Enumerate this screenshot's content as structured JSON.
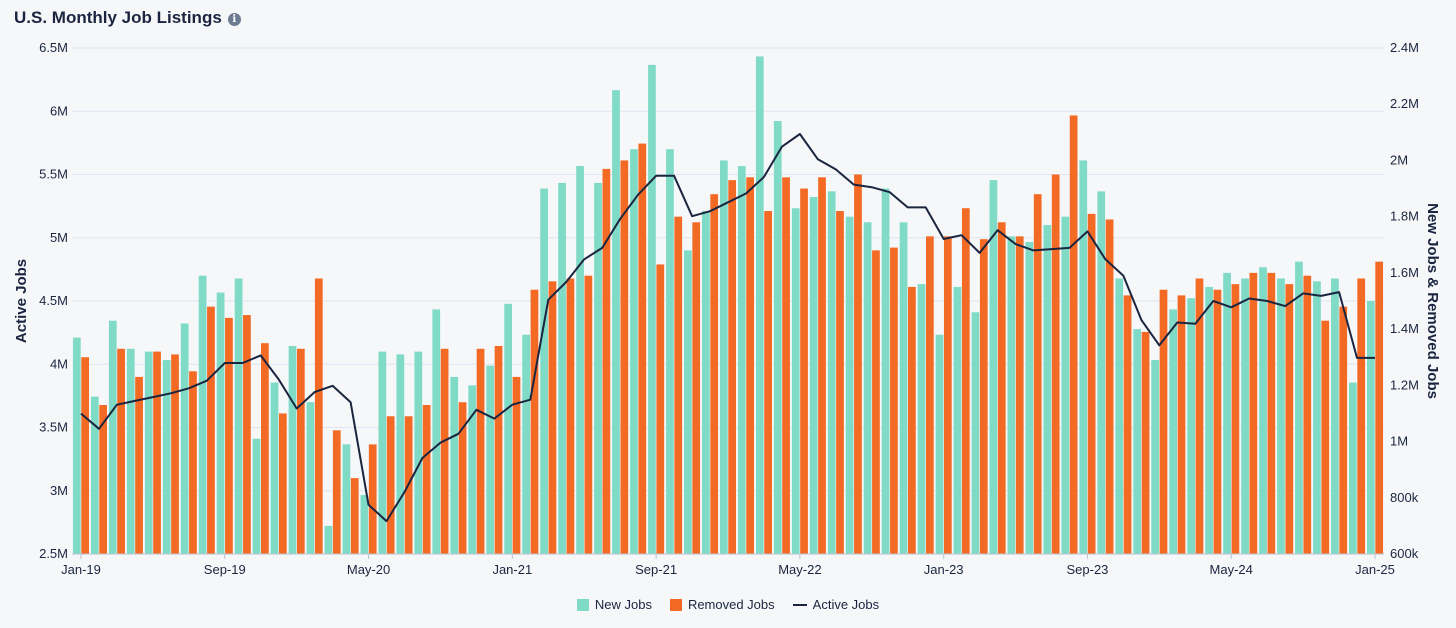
{
  "title": "U.S. Monthly Job Listings",
  "info_icon": "info-icon",
  "colors": {
    "new_jobs": "#7fdac6",
    "removed_jobs": "#f36a24",
    "active_jobs": "#1b2540",
    "grid": "#dce6f2",
    "text": "#1b2540"
  },
  "chart_data": {
    "type": "bar",
    "title": "U.S. Monthly Job Listings",
    "xlabel": "",
    "ylabel_left": "Active Jobs",
    "ylabel_right": "New Jobs & Removed Jobs",
    "ylim_left": [
      2500000,
      6500000
    ],
    "ylim_right": [
      600000,
      2400000
    ],
    "left_ticks": [
      "2.5M",
      "3M",
      "3.5M",
      "4M",
      "4.5M",
      "5M",
      "5.5M",
      "6M",
      "6.5M"
    ],
    "right_ticks": [
      "600k",
      "800k",
      "1M",
      "1.2M",
      "1.4M",
      "1.6M",
      "1.8M",
      "2M",
      "2.2M",
      "2.4M"
    ],
    "x_ticks": [
      "Jan-19",
      "Sep-19",
      "May-20",
      "Jan-21",
      "Sep-21",
      "May-22",
      "Jan-23",
      "Sep-23",
      "May-24",
      "Jan-25"
    ],
    "x_tick_index": [
      0,
      8,
      16,
      24,
      32,
      40,
      48,
      56,
      64,
      72
    ],
    "grid": true,
    "legend_position": "bottom",
    "categories": [
      "Jan-19",
      "Feb-19",
      "Mar-19",
      "Apr-19",
      "May-19",
      "Jun-19",
      "Jul-19",
      "Aug-19",
      "Sep-19",
      "Oct-19",
      "Nov-19",
      "Dec-19",
      "Jan-20",
      "Feb-20",
      "Mar-20",
      "Apr-20",
      "May-20",
      "Jun-20",
      "Jul-20",
      "Aug-20",
      "Sep-20",
      "Oct-20",
      "Nov-20",
      "Dec-20",
      "Jan-21",
      "Feb-21",
      "Mar-21",
      "Apr-21",
      "May-21",
      "Jun-21",
      "Jul-21",
      "Aug-21",
      "Sep-21",
      "Oct-21",
      "Nov-21",
      "Dec-21",
      "Jan-22",
      "Feb-22",
      "Mar-22",
      "Apr-22",
      "May-22",
      "Jun-22",
      "Jul-22",
      "Aug-22",
      "Sep-22",
      "Oct-22",
      "Nov-22",
      "Dec-22",
      "Jan-23",
      "Feb-23",
      "Mar-23",
      "Apr-23",
      "May-23",
      "Jun-23",
      "Jul-23",
      "Aug-23",
      "Sep-23",
      "Oct-23",
      "Nov-23",
      "Dec-23",
      "Jan-24",
      "Feb-24",
      "Mar-24",
      "Apr-24",
      "May-24",
      "Jun-24",
      "Jul-24",
      "Aug-24",
      "Sep-24",
      "Oct-24",
      "Nov-24",
      "Dec-24",
      "Jan-25"
    ],
    "series": [
      {
        "name": "New Jobs",
        "axis": "right",
        "type": "bar",
        "values": [
          1370000,
          1160000,
          1430000,
          1330000,
          1320000,
          1290000,
          1420000,
          1590000,
          1530000,
          1580000,
          1010000,
          1210000,
          1340000,
          1140000,
          700000,
          990000,
          810000,
          1320000,
          1310000,
          1320000,
          1470000,
          1230000,
          1200000,
          1270000,
          1490000,
          1380000,
          1900000,
          1920000,
          1980000,
          1920000,
          2250000,
          2040000,
          2340000,
          2040000,
          1680000,
          1820000,
          2000000,
          1980000,
          2370000,
          2140000,
          1830000,
          1870000,
          1890000,
          1800000,
          1780000,
          1900000,
          1780000,
          1560000,
          1380000,
          1550000,
          1460000,
          1930000,
          1730000,
          1710000,
          1770000,
          1800000,
          2000000,
          1890000,
          1580000,
          1400000,
          1290000,
          1470000,
          1510000,
          1550000,
          1600000,
          1580000,
          1620000,
          1580000,
          1640000,
          1570000,
          1580000,
          1210000,
          1500000
        ],
        "gap_months": []
      },
      {
        "name": "Removed Jobs",
        "axis": "right",
        "type": "bar",
        "values": [
          1300000,
          1130000,
          1330000,
          1230000,
          1320000,
          1310000,
          1250000,
          1480000,
          1440000,
          1450000,
          1350000,
          1100000,
          1330000,
          1580000,
          1040000,
          870000,
          990000,
          1090000,
          1090000,
          1130000,
          1330000,
          1140000,
          1330000,
          1340000,
          1230000,
          1540000,
          1570000,
          1580000,
          1590000,
          1970000,
          2000000,
          2060000,
          1630000,
          1800000,
          1780000,
          1880000,
          1930000,
          1940000,
          1820000,
          1940000,
          1900000,
          1940000,
          1820000,
          1950000,
          1680000,
          1690000,
          1550000,
          1730000,
          1730000,
          1830000,
          1720000,
          1780000,
          1730000,
          1880000,
          1950000,
          2160000,
          1810000,
          1790000,
          1520000,
          1390000,
          1540000,
          1520000,
          1580000,
          1540000,
          1560000,
          1600000,
          1600000,
          1560000,
          1590000,
          1430000,
          1480000,
          1580000,
          1640000
        ]
      },
      {
        "name": "Active Jobs",
        "axis": "left",
        "type": "line",
        "values": [
          3610000,
          3490000,
          3680000,
          3710000,
          3740000,
          3770000,
          3810000,
          3870000,
          4010000,
          4010000,
          4070000,
          3880000,
          3650000,
          3780000,
          3830000,
          3700000,
          2890000,
          2760000,
          2990000,
          3260000,
          3380000,
          3450000,
          3640000,
          3570000,
          3680000,
          3720000,
          4510000,
          4650000,
          4830000,
          4920000,
          5150000,
          5340000,
          5490000,
          5490000,
          5170000,
          5210000,
          5280000,
          5350000,
          5480000,
          5720000,
          5820000,
          5620000,
          5540000,
          5420000,
          5400000,
          5360000,
          5240000,
          5240000,
          4990000,
          5020000,
          4880000,
          5060000,
          4950000,
          4900000,
          4910000,
          4920000,
          5050000,
          4830000,
          4700000,
          4350000,
          4150000,
          4330000,
          4320000,
          4500000,
          4450000,
          4520000,
          4500000,
          4460000,
          4560000,
          4540000,
          4570000,
          4050000,
          4050000
        ]
      }
    ]
  },
  "legend": [
    {
      "label": "New Jobs",
      "color": "#7fdac6",
      "shape": "box"
    },
    {
      "label": "Removed Jobs",
      "color": "#f36a24",
      "shape": "box"
    },
    {
      "label": "Active Jobs",
      "color": "#1b2540",
      "shape": "line"
    }
  ]
}
